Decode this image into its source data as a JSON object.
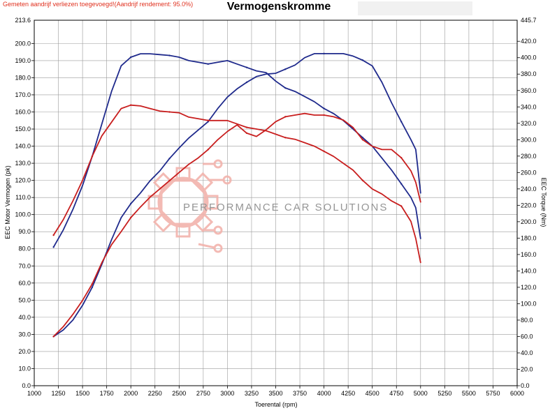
{
  "header": {
    "notice": "Gemeten aandrijf verliezen toegevoegd!(Aandrijf rendement: 95.0%)",
    "title": "Vermogenskromme"
  },
  "watermark": {
    "text": "PERFORMANCE CAR SOLUTIONS",
    "logo_icon": "gear-circuit-logo-icon"
  },
  "colors": {
    "stock": "#1f2a8c",
    "tuned": "#c81e1e",
    "grid": "#9a9a9a",
    "logo": "#f2b3ac"
  },
  "chart_data": {
    "type": "line",
    "title": "Vermogenskromme",
    "xlabel": "Toerental (rpm)",
    "ylabel": "EEC Motor Vermogen (pk)",
    "y2label": "EEC Torque (Nm)",
    "xlim": [
      1000,
      6000
    ],
    "ylim": [
      0,
      213.6
    ],
    "y2lim": [
      0,
      445.7
    ],
    "grid": true,
    "x_ticks": [
      "1000",
      "1250",
      "1500",
      "1750",
      "2000",
      "2250",
      "2500",
      "2750",
      "3000",
      "3250",
      "3500",
      "3750",
      "4000",
      "4250",
      "4500",
      "4750",
      "5000",
      "5250",
      "5500",
      "5750",
      "6000"
    ],
    "y_ticks": [
      "0.0",
      "10.0",
      "20.0",
      "30.0",
      "40.0",
      "50.0",
      "60.0",
      "70.0",
      "80.0",
      "90.0",
      "100.0",
      "110.0",
      "120.0",
      "130.0",
      "140.0",
      "150.0",
      "160.0",
      "170.0",
      "180.0",
      "190.0",
      "200.0"
    ],
    "y_top_tick": "213.6",
    "y2_ticks": [
      "0.0",
      "20.0",
      "40.0",
      "60.0",
      "80.0",
      "100.0",
      "120.0",
      "140.0",
      "160.0",
      "180.0",
      "200.0",
      "220.0",
      "240.0",
      "260.0",
      "280.0",
      "300.0",
      "320.0",
      "340.0",
      "360.0",
      "380.0",
      "400.0",
      "420.0"
    ],
    "y2_top_tick": "445.7",
    "series": [
      {
        "id": "power_tuned",
        "color": "#1f2a8c",
        "axis": "left",
        "x": [
          1200,
          1300,
          1400,
          1500,
          1600,
          1700,
          1800,
          1900,
          2000,
          2100,
          2200,
          2300,
          2400,
          2500,
          2600,
          2700,
          2800,
          2900,
          3000,
          3100,
          3200,
          3300,
          3400,
          3500,
          3600,
          3700,
          3800,
          3900,
          4000,
          4100,
          4200,
          4300,
          4400,
          4500,
          4600,
          4700,
          4800,
          4900,
          4950,
          5000
        ],
        "y": [
          81,
          91,
          103,
          117,
          134,
          153,
          172,
          187,
          192,
          194,
          194,
          193.5,
          193,
          192,
          190,
          189,
          188,
          189,
          190,
          188,
          186,
          184,
          183,
          178,
          174,
          172,
          169,
          166,
          162,
          159,
          155,
          150,
          145,
          140,
          133,
          126,
          118,
          110,
          104,
          86
        ]
      },
      {
        "id": "torque_tuned",
        "color": "#1f2a8c",
        "axis": "right",
        "x": [
          1200,
          1300,
          1400,
          1500,
          1600,
          1700,
          1800,
          1900,
          2000,
          2100,
          2200,
          2300,
          2400,
          2500,
          2600,
          2700,
          2800,
          2900,
          3000,
          3100,
          3200,
          3300,
          3400,
          3500,
          3600,
          3700,
          3800,
          3900,
          4000,
          4100,
          4200,
          4300,
          4400,
          4500,
          4600,
          4700,
          4800,
          4900,
          4950,
          5000
        ],
        "y": [
          60,
          68,
          80,
          98,
          120,
          148,
          178,
          205,
          222,
          235,
          250,
          262,
          277,
          290,
          302,
          312,
          322,
          338,
          352,
          362,
          370,
          377,
          380,
          381,
          386,
          391,
          400,
          405,
          405,
          405,
          405,
          402,
          397,
          390,
          370,
          345,
          322,
          300,
          288,
          235
        ]
      },
      {
        "id": "power_stock",
        "color": "#c81e1e",
        "axis": "left",
        "x": [
          1200,
          1300,
          1400,
          1500,
          1600,
          1700,
          1800,
          1900,
          2000,
          2100,
          2200,
          2300,
          2400,
          2500,
          2600,
          2700,
          2800,
          2900,
          3000,
          3100,
          3200,
          3300,
          3400,
          3500,
          3600,
          3700,
          3800,
          3900,
          4000,
          4100,
          4200,
          4300,
          4400,
          4500,
          4600,
          4700,
          4800,
          4900,
          4950,
          5000
        ],
        "y": [
          88,
          97,
          108,
          120,
          134,
          146,
          154,
          162,
          164,
          163.5,
          162,
          160.5,
          160,
          159.5,
          157,
          156,
          155,
          155,
          155,
          153,
          151,
          150,
          149,
          147,
          145,
          144,
          142,
          140,
          137,
          134,
          130,
          126,
          120,
          115,
          112,
          108,
          105,
          96,
          86,
          72
        ]
      },
      {
        "id": "torque_stock",
        "color": "#c81e1e",
        "axis": "right",
        "x": [
          1200,
          1300,
          1400,
          1500,
          1600,
          1700,
          1800,
          1900,
          2000,
          2100,
          2200,
          2300,
          2400,
          2500,
          2600,
          2700,
          2800,
          2900,
          3000,
          3100,
          3200,
          3300,
          3400,
          3500,
          3600,
          3700,
          3800,
          3900,
          4000,
          4100,
          4200,
          4300,
          4400,
          4500,
          4600,
          4700,
          4800,
          4900,
          4950,
          5000
        ],
        "y": [
          60,
          72,
          87,
          104,
          124,
          150,
          172,
          188,
          205,
          218,
          230,
          240,
          250,
          260,
          270,
          278,
          288,
          300,
          310,
          318,
          308,
          304,
          312,
          322,
          328,
          330,
          332,
          330,
          330,
          328,
          324,
          315,
          300,
          292,
          288,
          288,
          278,
          262,
          248,
          224
        ]
      }
    ]
  }
}
